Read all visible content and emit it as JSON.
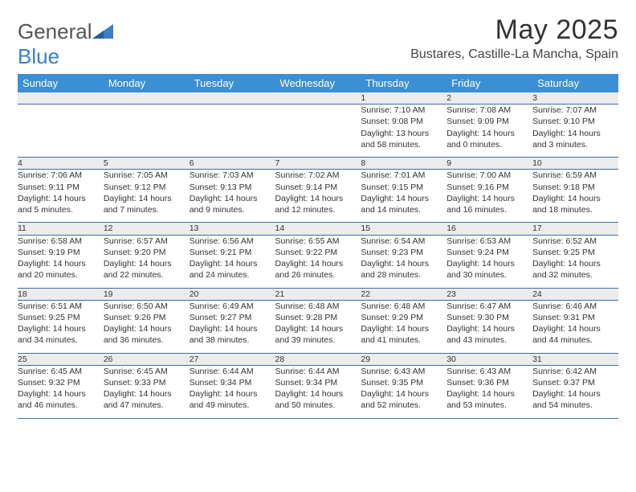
{
  "brand": {
    "name_part1": "General",
    "name_part2": "Blue"
  },
  "header": {
    "title": "May 2025",
    "location": "Bustares, Castille-La Mancha, Spain"
  },
  "colors": {
    "header_bg": "#3b8fd4",
    "row_separator": "#3b6fa8",
    "daynum_bg": "#ececec",
    "brand_blue": "#3b7fc4"
  },
  "weekdays": [
    "Sunday",
    "Monday",
    "Tuesday",
    "Wednesday",
    "Thursday",
    "Friday",
    "Saturday"
  ],
  "weeks": [
    [
      null,
      null,
      null,
      null,
      {
        "day": "1",
        "sunrise": "Sunrise: 7:10 AM",
        "sunset": "Sunset: 9:08 PM",
        "daylight1": "Daylight: 13 hours",
        "daylight2": "and 58 minutes."
      },
      {
        "day": "2",
        "sunrise": "Sunrise: 7:08 AM",
        "sunset": "Sunset: 9:09 PM",
        "daylight1": "Daylight: 14 hours",
        "daylight2": "and 0 minutes."
      },
      {
        "day": "3",
        "sunrise": "Sunrise: 7:07 AM",
        "sunset": "Sunset: 9:10 PM",
        "daylight1": "Daylight: 14 hours",
        "daylight2": "and 3 minutes."
      }
    ],
    [
      {
        "day": "4",
        "sunrise": "Sunrise: 7:06 AM",
        "sunset": "Sunset: 9:11 PM",
        "daylight1": "Daylight: 14 hours",
        "daylight2": "and 5 minutes."
      },
      {
        "day": "5",
        "sunrise": "Sunrise: 7:05 AM",
        "sunset": "Sunset: 9:12 PM",
        "daylight1": "Daylight: 14 hours",
        "daylight2": "and 7 minutes."
      },
      {
        "day": "6",
        "sunrise": "Sunrise: 7:03 AM",
        "sunset": "Sunset: 9:13 PM",
        "daylight1": "Daylight: 14 hours",
        "daylight2": "and 9 minutes."
      },
      {
        "day": "7",
        "sunrise": "Sunrise: 7:02 AM",
        "sunset": "Sunset: 9:14 PM",
        "daylight1": "Daylight: 14 hours",
        "daylight2": "and 12 minutes."
      },
      {
        "day": "8",
        "sunrise": "Sunrise: 7:01 AM",
        "sunset": "Sunset: 9:15 PM",
        "daylight1": "Daylight: 14 hours",
        "daylight2": "and 14 minutes."
      },
      {
        "day": "9",
        "sunrise": "Sunrise: 7:00 AM",
        "sunset": "Sunset: 9:16 PM",
        "daylight1": "Daylight: 14 hours",
        "daylight2": "and 16 minutes."
      },
      {
        "day": "10",
        "sunrise": "Sunrise: 6:59 AM",
        "sunset": "Sunset: 9:18 PM",
        "daylight1": "Daylight: 14 hours",
        "daylight2": "and 18 minutes."
      }
    ],
    [
      {
        "day": "11",
        "sunrise": "Sunrise: 6:58 AM",
        "sunset": "Sunset: 9:19 PM",
        "daylight1": "Daylight: 14 hours",
        "daylight2": "and 20 minutes."
      },
      {
        "day": "12",
        "sunrise": "Sunrise: 6:57 AM",
        "sunset": "Sunset: 9:20 PM",
        "daylight1": "Daylight: 14 hours",
        "daylight2": "and 22 minutes."
      },
      {
        "day": "13",
        "sunrise": "Sunrise: 6:56 AM",
        "sunset": "Sunset: 9:21 PM",
        "daylight1": "Daylight: 14 hours",
        "daylight2": "and 24 minutes."
      },
      {
        "day": "14",
        "sunrise": "Sunrise: 6:55 AM",
        "sunset": "Sunset: 9:22 PM",
        "daylight1": "Daylight: 14 hours",
        "daylight2": "and 26 minutes."
      },
      {
        "day": "15",
        "sunrise": "Sunrise: 6:54 AM",
        "sunset": "Sunset: 9:23 PM",
        "daylight1": "Daylight: 14 hours",
        "daylight2": "and 28 minutes."
      },
      {
        "day": "16",
        "sunrise": "Sunrise: 6:53 AM",
        "sunset": "Sunset: 9:24 PM",
        "daylight1": "Daylight: 14 hours",
        "daylight2": "and 30 minutes."
      },
      {
        "day": "17",
        "sunrise": "Sunrise: 6:52 AM",
        "sunset": "Sunset: 9:25 PM",
        "daylight1": "Daylight: 14 hours",
        "daylight2": "and 32 minutes."
      }
    ],
    [
      {
        "day": "18",
        "sunrise": "Sunrise: 6:51 AM",
        "sunset": "Sunset: 9:25 PM",
        "daylight1": "Daylight: 14 hours",
        "daylight2": "and 34 minutes."
      },
      {
        "day": "19",
        "sunrise": "Sunrise: 6:50 AM",
        "sunset": "Sunset: 9:26 PM",
        "daylight1": "Daylight: 14 hours",
        "daylight2": "and 36 minutes."
      },
      {
        "day": "20",
        "sunrise": "Sunrise: 6:49 AM",
        "sunset": "Sunset: 9:27 PM",
        "daylight1": "Daylight: 14 hours",
        "daylight2": "and 38 minutes."
      },
      {
        "day": "21",
        "sunrise": "Sunrise: 6:48 AM",
        "sunset": "Sunset: 9:28 PM",
        "daylight1": "Daylight: 14 hours",
        "daylight2": "and 39 minutes."
      },
      {
        "day": "22",
        "sunrise": "Sunrise: 6:48 AM",
        "sunset": "Sunset: 9:29 PM",
        "daylight1": "Daylight: 14 hours",
        "daylight2": "and 41 minutes."
      },
      {
        "day": "23",
        "sunrise": "Sunrise: 6:47 AM",
        "sunset": "Sunset: 9:30 PM",
        "daylight1": "Daylight: 14 hours",
        "daylight2": "and 43 minutes."
      },
      {
        "day": "24",
        "sunrise": "Sunrise: 6:46 AM",
        "sunset": "Sunset: 9:31 PM",
        "daylight1": "Daylight: 14 hours",
        "daylight2": "and 44 minutes."
      }
    ],
    [
      {
        "day": "25",
        "sunrise": "Sunrise: 6:45 AM",
        "sunset": "Sunset: 9:32 PM",
        "daylight1": "Daylight: 14 hours",
        "daylight2": "and 46 minutes."
      },
      {
        "day": "26",
        "sunrise": "Sunrise: 6:45 AM",
        "sunset": "Sunset: 9:33 PM",
        "daylight1": "Daylight: 14 hours",
        "daylight2": "and 47 minutes."
      },
      {
        "day": "27",
        "sunrise": "Sunrise: 6:44 AM",
        "sunset": "Sunset: 9:34 PM",
        "daylight1": "Daylight: 14 hours",
        "daylight2": "and 49 minutes."
      },
      {
        "day": "28",
        "sunrise": "Sunrise: 6:44 AM",
        "sunset": "Sunset: 9:34 PM",
        "daylight1": "Daylight: 14 hours",
        "daylight2": "and 50 minutes."
      },
      {
        "day": "29",
        "sunrise": "Sunrise: 6:43 AM",
        "sunset": "Sunset: 9:35 PM",
        "daylight1": "Daylight: 14 hours",
        "daylight2": "and 52 minutes."
      },
      {
        "day": "30",
        "sunrise": "Sunrise: 6:43 AM",
        "sunset": "Sunset: 9:36 PM",
        "daylight1": "Daylight: 14 hours",
        "daylight2": "and 53 minutes."
      },
      {
        "day": "31",
        "sunrise": "Sunrise: 6:42 AM",
        "sunset": "Sunset: 9:37 PM",
        "daylight1": "Daylight: 14 hours",
        "daylight2": "and 54 minutes."
      }
    ]
  ]
}
